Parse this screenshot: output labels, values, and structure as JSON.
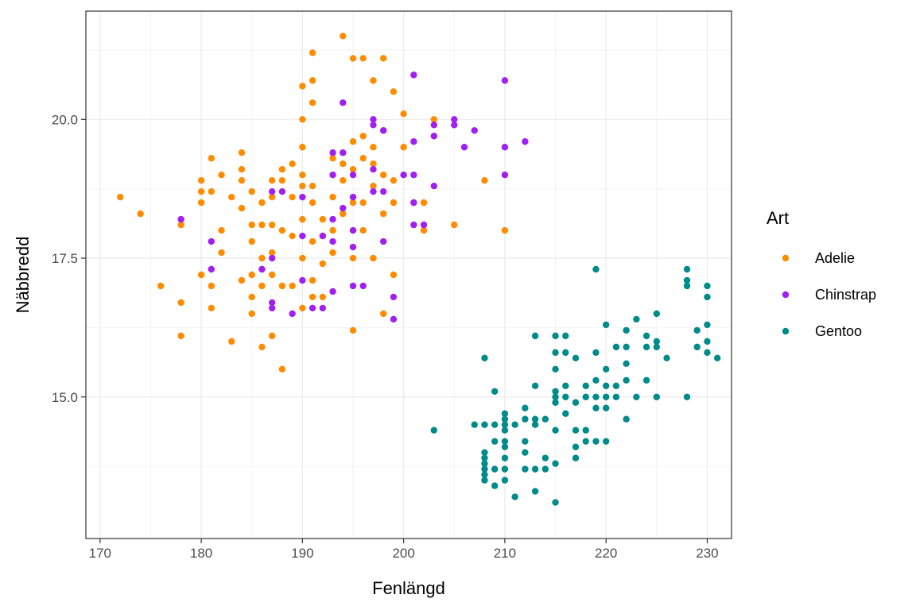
{
  "chart_data": {
    "type": "scatter",
    "title": "",
    "xlabel": "Fenlängd",
    "ylabel": "Näbbredd",
    "xlim": [
      168.6,
      232.4
    ],
    "ylim": [
      12.45,
      21.95
    ],
    "x_ticks": [
      170,
      180,
      190,
      200,
      210,
      220,
      230
    ],
    "y_ticks": [
      15.0,
      17.5,
      20.0
    ],
    "x_tick_labels": [
      "170",
      "180",
      "190",
      "200",
      "210",
      "220",
      "230"
    ],
    "y_tick_labels": [
      "15.0",
      "17.5",
      "20.0"
    ],
    "grid": true,
    "legend": {
      "title": "Art",
      "position": "right"
    },
    "series": [
      {
        "name": "Adelie",
        "color": "#FF8C00",
        "points": [
          [
            172,
            18.6
          ],
          [
            174,
            18.3
          ],
          [
            176,
            17.0
          ],
          [
            178,
            18.1
          ],
          [
            178,
            16.7
          ],
          [
            178,
            16.1
          ],
          [
            180,
            18.7
          ],
          [
            180,
            18.5
          ],
          [
            180,
            18.9
          ],
          [
            180,
            17.2
          ],
          [
            181,
            18.7
          ],
          [
            181,
            19.3
          ],
          [
            181,
            17.0
          ],
          [
            181,
            16.6
          ],
          [
            182,
            19.0
          ],
          [
            182,
            17.6
          ],
          [
            182,
            18.0
          ],
          [
            183,
            18.6
          ],
          [
            183,
            16.0
          ],
          [
            184,
            19.4
          ],
          [
            184,
            19.1
          ],
          [
            184,
            18.9
          ],
          [
            184,
            18.4
          ],
          [
            184,
            17.1
          ],
          [
            185,
            18.7
          ],
          [
            185,
            18.1
          ],
          [
            185,
            17.8
          ],
          [
            185,
            17.2
          ],
          [
            185,
            16.8
          ],
          [
            185,
            16.5
          ],
          [
            186,
            18.5
          ],
          [
            186,
            18.1
          ],
          [
            186,
            17.5
          ],
          [
            186,
            17.3
          ],
          [
            186,
            17.0
          ],
          [
            186,
            15.9
          ],
          [
            187,
            18.9
          ],
          [
            187,
            18.6
          ],
          [
            187,
            18.1
          ],
          [
            187,
            17.6
          ],
          [
            187,
            17.2
          ],
          [
            187,
            16.1
          ],
          [
            188,
            19.1
          ],
          [
            188,
            18.9
          ],
          [
            188,
            18.0
          ],
          [
            188,
            17.0
          ],
          [
            188,
            15.5
          ],
          [
            189,
            19.2
          ],
          [
            189,
            18.6
          ],
          [
            189,
            17.9
          ],
          [
            189,
            17.0
          ],
          [
            190,
            20.6
          ],
          [
            190,
            20.0
          ],
          [
            190,
            19.5
          ],
          [
            190,
            19.0
          ],
          [
            190,
            18.8
          ],
          [
            190,
            18.2
          ],
          [
            190,
            17.5
          ],
          [
            190,
            16.6
          ],
          [
            191,
            21.2
          ],
          [
            191,
            20.7
          ],
          [
            191,
            20.3
          ],
          [
            191,
            18.8
          ],
          [
            191,
            18.5
          ],
          [
            191,
            17.8
          ],
          [
            191,
            17.1
          ],
          [
            191,
            16.8
          ],
          [
            192,
            18.2
          ],
          [
            192,
            17.9
          ],
          [
            192,
            17.4
          ],
          [
            192,
            16.8
          ],
          [
            193,
            19.3
          ],
          [
            193,
            18.6
          ],
          [
            193,
            18.0
          ],
          [
            193,
            17.6
          ],
          [
            194,
            21.5
          ],
          [
            194,
            19.2
          ],
          [
            194,
            18.9
          ],
          [
            194,
            18.3
          ],
          [
            195,
            21.1
          ],
          [
            195,
            19.6
          ],
          [
            195,
            19.1
          ],
          [
            195,
            18.5
          ],
          [
            195,
            18.0
          ],
          [
            195,
            17.5
          ],
          [
            195,
            16.2
          ],
          [
            196,
            21.1
          ],
          [
            196,
            19.7
          ],
          [
            196,
            19.3
          ],
          [
            196,
            18.5
          ],
          [
            196,
            18.0
          ],
          [
            197,
            20.7
          ],
          [
            197,
            19.5
          ],
          [
            197,
            19.2
          ],
          [
            197,
            18.8
          ],
          [
            197,
            17.5
          ],
          [
            198,
            21.1
          ],
          [
            198,
            19.8
          ],
          [
            198,
            19.0
          ],
          [
            198,
            18.3
          ],
          [
            198,
            16.5
          ],
          [
            199,
            20.5
          ],
          [
            199,
            18.9
          ],
          [
            199,
            18.5
          ],
          [
            199,
            17.2
          ],
          [
            200,
            20.1
          ],
          [
            200,
            19.5
          ],
          [
            201,
            18.5
          ],
          [
            202,
            18.5
          ],
          [
            202,
            18.0
          ],
          [
            203,
            20.0
          ],
          [
            205,
            18.1
          ],
          [
            208,
            18.9
          ],
          [
            210,
            18.0
          ]
        ]
      },
      {
        "name": "Chinstrap",
        "color": "#A020F0",
        "points": [
          [
            178,
            18.2
          ],
          [
            181,
            17.8
          ],
          [
            181,
            17.3
          ],
          [
            186,
            17.3
          ],
          [
            187,
            18.7
          ],
          [
            187,
            17.5
          ],
          [
            187,
            16.7
          ],
          [
            187,
            16.6
          ],
          [
            188,
            18.7
          ],
          [
            189,
            16.5
          ],
          [
            190,
            18.6
          ],
          [
            190,
            17.9
          ],
          [
            190,
            17.1
          ],
          [
            191,
            16.6
          ],
          [
            192,
            16.6
          ],
          [
            192,
            17.9
          ],
          [
            193,
            19.4
          ],
          [
            193,
            19.0
          ],
          [
            193,
            18.2
          ],
          [
            193,
            17.8
          ],
          [
            193,
            16.9
          ],
          [
            194,
            20.3
          ],
          [
            194,
            19.4
          ],
          [
            194,
            18.4
          ],
          [
            195,
            19.0
          ],
          [
            195,
            18.6
          ],
          [
            195,
            18.0
          ],
          [
            195,
            17.7
          ],
          [
            195,
            17.0
          ],
          [
            196,
            17.0
          ],
          [
            197,
            20.0
          ],
          [
            197,
            19.9
          ],
          [
            197,
            19.1
          ],
          [
            197,
            18.7
          ],
          [
            198,
            19.8
          ],
          [
            198,
            18.7
          ],
          [
            198,
            17.8
          ],
          [
            199,
            16.8
          ],
          [
            199,
            16.4
          ],
          [
            200,
            19.0
          ],
          [
            201,
            20.8
          ],
          [
            201,
            19.6
          ],
          [
            201,
            19.0
          ],
          [
            201,
            18.5
          ],
          [
            201,
            18.1
          ],
          [
            202,
            18.1
          ],
          [
            203,
            18.8
          ],
          [
            203,
            19.9
          ],
          [
            203,
            19.7
          ],
          [
            205,
            20.0
          ],
          [
            205,
            19.9
          ],
          [
            206,
            19.5
          ],
          [
            207,
            19.8
          ],
          [
            210,
            20.7
          ],
          [
            210,
            19.5
          ],
          [
            210,
            19.0
          ],
          [
            212,
            19.6
          ]
        ]
      },
      {
        "name": "Gentoo",
        "color": "#008B8B",
        "points": [
          [
            203,
            14.4
          ],
          [
            207,
            14.5
          ],
          [
            208,
            15.7
          ],
          [
            208,
            14.5
          ],
          [
            208,
            14.0
          ],
          [
            208,
            13.9
          ],
          [
            208,
            13.8
          ],
          [
            208,
            13.7
          ],
          [
            208,
            13.6
          ],
          [
            208,
            13.5
          ],
          [
            209,
            15.1
          ],
          [
            209,
            14.5
          ],
          [
            209,
            14.2
          ],
          [
            209,
            13.7
          ],
          [
            209,
            13.4
          ],
          [
            210,
            14.7
          ],
          [
            210,
            14.6
          ],
          [
            210,
            14.5
          ],
          [
            210,
            14.4
          ],
          [
            210,
            14.2
          ],
          [
            210,
            14.1
          ],
          [
            210,
            13.9
          ],
          [
            210,
            13.7
          ],
          [
            210,
            13.5
          ],
          [
            211,
            14.5
          ],
          [
            211,
            13.2
          ],
          [
            212,
            14.8
          ],
          [
            212,
            14.6
          ],
          [
            212,
            14.2
          ],
          [
            212,
            14.0
          ],
          [
            212,
            13.7
          ],
          [
            213,
            16.1
          ],
          [
            213,
            15.2
          ],
          [
            213,
            14.6
          ],
          [
            213,
            14.5
          ],
          [
            213,
            13.7
          ],
          [
            213,
            13.3
          ],
          [
            214,
            14.6
          ],
          [
            214,
            13.9
          ],
          [
            214,
            13.7
          ],
          [
            215,
            16.1
          ],
          [
            215,
            15.8
          ],
          [
            215,
            15.5
          ],
          [
            215,
            15.1
          ],
          [
            215,
            15.0
          ],
          [
            215,
            14.9
          ],
          [
            215,
            14.4
          ],
          [
            215,
            13.8
          ],
          [
            215,
            13.1
          ],
          [
            216,
            16.1
          ],
          [
            216,
            15.8
          ],
          [
            216,
            15.2
          ],
          [
            216,
            15.0
          ],
          [
            216,
            14.7
          ],
          [
            217,
            15.7
          ],
          [
            217,
            14.9
          ],
          [
            217,
            14.4
          ],
          [
            217,
            14.1
          ],
          [
            217,
            13.9
          ],
          [
            218,
            15.2
          ],
          [
            218,
            15.0
          ],
          [
            218,
            14.4
          ],
          [
            218,
            14.2
          ],
          [
            219,
            17.3
          ],
          [
            219,
            15.8
          ],
          [
            219,
            15.3
          ],
          [
            219,
            15.0
          ],
          [
            219,
            14.8
          ],
          [
            219,
            14.2
          ],
          [
            220,
            16.3
          ],
          [
            220,
            15.5
          ],
          [
            220,
            15.2
          ],
          [
            220,
            15.0
          ],
          [
            220,
            14.8
          ],
          [
            220,
            14.2
          ],
          [
            221,
            15.9
          ],
          [
            221,
            15.2
          ],
          [
            221,
            15.0
          ],
          [
            222,
            16.2
          ],
          [
            222,
            15.9
          ],
          [
            222,
            15.6
          ],
          [
            222,
            15.3
          ],
          [
            222,
            14.6
          ],
          [
            223,
            16.4
          ],
          [
            223,
            15.0
          ],
          [
            224,
            16.1
          ],
          [
            224,
            15.9
          ],
          [
            224,
            15.3
          ],
          [
            225,
            16.5
          ],
          [
            225,
            16.0
          ],
          [
            225,
            15.9
          ],
          [
            225,
            15.0
          ],
          [
            226,
            15.7
          ],
          [
            228,
            17.3
          ],
          [
            228,
            17.1
          ],
          [
            228,
            17.0
          ],
          [
            228,
            15.0
          ],
          [
            229,
            16.2
          ],
          [
            229,
            15.9
          ],
          [
            230,
            17.0
          ],
          [
            230,
            16.8
          ],
          [
            230,
            16.3
          ],
          [
            230,
            16.0
          ],
          [
            230,
            15.8
          ],
          [
            231,
            15.7
          ]
        ]
      }
    ]
  }
}
